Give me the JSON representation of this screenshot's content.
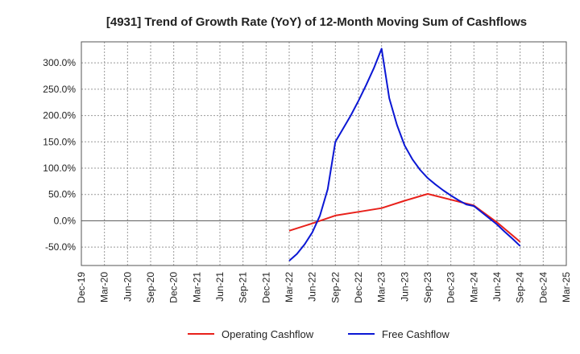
{
  "chart_data": {
    "type": "line",
    "title": "[4931]  Trend of Growth Rate (YoY) of 12-Month Moving Sum of Cashflows",
    "x_labels": [
      "Dec-19",
      "Mar-20",
      "Jun-20",
      "Sep-20",
      "Dec-20",
      "Mar-21",
      "Jun-21",
      "Sep-21",
      "Dec-21",
      "Mar-22",
      "Jun-22",
      "Sep-22",
      "Dec-22",
      "Mar-23",
      "Jun-23",
      "Sep-23",
      "Dec-23",
      "Mar-24",
      "Jun-24",
      "Sep-24",
      "Dec-24",
      "Mar-25"
    ],
    "y_ticks": [
      -50,
      0,
      50,
      100,
      150,
      200,
      250,
      300
    ],
    "y_tick_labels": [
      "-50.0%",
      "0.0%",
      "50.0%",
      "100.0%",
      "150.0%",
      "200.0%",
      "250.0%",
      "300.0%"
    ],
    "ylim": [
      -85,
      340
    ],
    "grid": true,
    "legend_position": "bottom",
    "series": [
      {
        "name": "Operating Cashflow",
        "color": "#e8201a",
        "points": [
          [
            "Mar-22",
            -19
          ],
          [
            "Jun-22",
            -5
          ],
          [
            "Sep-22",
            10
          ],
          [
            "Dec-22",
            17
          ],
          [
            "Mar-23",
            24
          ],
          [
            "Jun-23",
            38
          ],
          [
            "Sep-23",
            51
          ],
          [
            "Dec-23",
            40
          ],
          [
            "Mar-24",
            29
          ],
          [
            "Jun-24",
            -3
          ],
          [
            "Sep-24",
            -40
          ]
        ]
      },
      {
        "name": "Free Cashflow",
        "color": "#0b17d4",
        "points": [
          [
            "Mar-22",
            -76
          ],
          [
            "Apr-22",
            -63
          ],
          [
            "May-22",
            -45
          ],
          [
            "Jun-22",
            -22
          ],
          [
            "Jul-22",
            10
          ],
          [
            "Aug-22",
            60
          ],
          [
            "Sep-22",
            150
          ],
          [
            "Oct-22",
            175
          ],
          [
            "Nov-22",
            200
          ],
          [
            "Dec-22",
            228
          ],
          [
            "Jan-23",
            258
          ],
          [
            "Feb-23",
            290
          ],
          [
            "Mar-23",
            327
          ],
          [
            "Apr-23",
            233
          ],
          [
            "May-23",
            182
          ],
          [
            "Jun-23",
            143
          ],
          [
            "Jul-23",
            117
          ],
          [
            "Aug-23",
            97
          ],
          [
            "Sep-23",
            81
          ],
          [
            "Oct-23",
            69
          ],
          [
            "Nov-23",
            58
          ],
          [
            "Dec-23",
            48
          ],
          [
            "Jan-24",
            39
          ],
          [
            "Feb-24",
            31
          ],
          [
            "Mar-24",
            28
          ],
          [
            "Jun-24",
            -7
          ],
          [
            "Jul-24",
            -21
          ],
          [
            "Aug-24",
            -34
          ],
          [
            "Sep-24",
            -48
          ]
        ]
      }
    ]
  }
}
